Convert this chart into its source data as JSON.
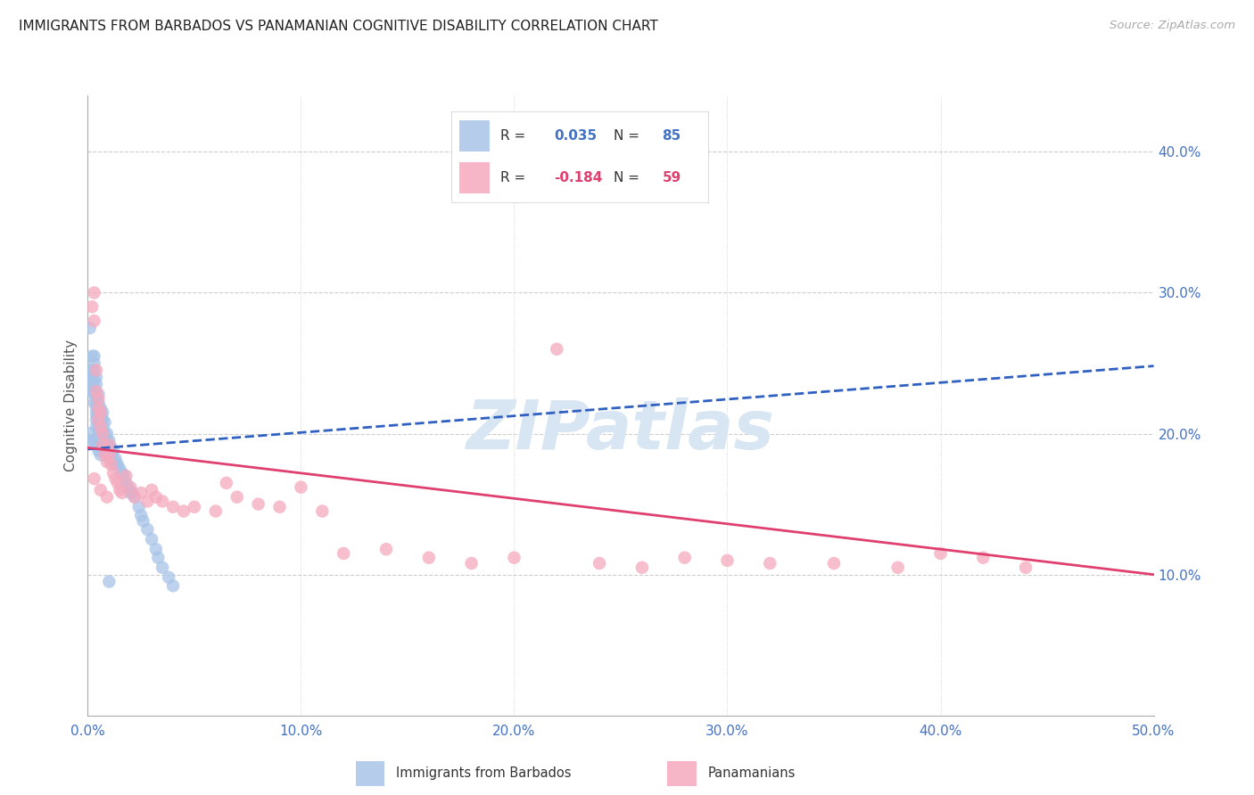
{
  "title": "IMMIGRANTS FROM BARBADOS VS PANAMANIAN COGNITIVE DISABILITY CORRELATION CHART",
  "source": "Source: ZipAtlas.com",
  "ylabel": "Cognitive Disability",
  "xlim": [
    0.0,
    0.5
  ],
  "ylim": [
    0.0,
    0.44
  ],
  "xticks": [
    0.0,
    0.1,
    0.2,
    0.3,
    0.4,
    0.5
  ],
  "yticks": [
    0.1,
    0.2,
    0.3,
    0.4
  ],
  "ytick_labels": [
    "10.0%",
    "20.0%",
    "30.0%",
    "40.0%"
  ],
  "xtick_labels": [
    "0.0%",
    "10.0%",
    "20.0%",
    "30.0%",
    "40.0%",
    "50.0%"
  ],
  "blue_dot_color": "#a8c4e8",
  "pink_dot_color": "#f5aabe",
  "blue_line_color": "#3060c0",
  "pink_line_color": "#e04070",
  "grid_color": "#cccccc",
  "background_color": "#ffffff",
  "title_color": "#222222",
  "axis_label_color": "#555555",
  "tick_label_color": "#4472c4",
  "watermark_color": "#d8e5f3",
  "blue_trend_x0": 0.0,
  "blue_trend_y0": 0.189,
  "blue_trend_x1": 0.5,
  "blue_trend_y1": 0.248,
  "pink_trend_x0": 0.0,
  "pink_trend_y0": 0.19,
  "pink_trend_x1": 0.5,
  "pink_trend_y1": 0.1,
  "blue_scatter_x": [
    0.001,
    0.001,
    0.002,
    0.002,
    0.002,
    0.002,
    0.002,
    0.003,
    0.003,
    0.003,
    0.003,
    0.003,
    0.003,
    0.003,
    0.004,
    0.004,
    0.004,
    0.004,
    0.004,
    0.004,
    0.004,
    0.004,
    0.005,
    0.005,
    0.005,
    0.005,
    0.005,
    0.005,
    0.005,
    0.006,
    0.006,
    0.006,
    0.006,
    0.006,
    0.006,
    0.007,
    0.007,
    0.007,
    0.007,
    0.007,
    0.007,
    0.008,
    0.008,
    0.008,
    0.008,
    0.009,
    0.009,
    0.009,
    0.009,
    0.01,
    0.01,
    0.01,
    0.01,
    0.011,
    0.011,
    0.012,
    0.012,
    0.013,
    0.013,
    0.014,
    0.015,
    0.016,
    0.017,
    0.018,
    0.019,
    0.02,
    0.021,
    0.022,
    0.024,
    0.025,
    0.026,
    0.028,
    0.03,
    0.032,
    0.033,
    0.035,
    0.038,
    0.04,
    0.001,
    0.002,
    0.003,
    0.004,
    0.005,
    0.006,
    0.007,
    0.009,
    0.01
  ],
  "blue_scatter_y": [
    0.275,
    0.24,
    0.255,
    0.245,
    0.24,
    0.235,
    0.23,
    0.255,
    0.25,
    0.245,
    0.238,
    0.232,
    0.228,
    0.222,
    0.24,
    0.235,
    0.228,
    0.222,
    0.218,
    0.214,
    0.21,
    0.205,
    0.228,
    0.222,
    0.218,
    0.215,
    0.21,
    0.205,
    0.2,
    0.218,
    0.215,
    0.21,
    0.205,
    0.2,
    0.195,
    0.215,
    0.21,
    0.205,
    0.2,
    0.195,
    0.19,
    0.208,
    0.2,
    0.195,
    0.188,
    0.2,
    0.195,
    0.19,
    0.185,
    0.195,
    0.192,
    0.188,
    0.182,
    0.19,
    0.185,
    0.188,
    0.182,
    0.182,
    0.178,
    0.178,
    0.175,
    0.172,
    0.17,
    0.165,
    0.162,
    0.158,
    0.158,
    0.155,
    0.148,
    0.142,
    0.138,
    0.132,
    0.125,
    0.118,
    0.112,
    0.105,
    0.098,
    0.092,
    0.2,
    0.195,
    0.195,
    0.192,
    0.188,
    0.185,
    0.2,
    0.185,
    0.095
  ],
  "pink_scatter_x": [
    0.002,
    0.003,
    0.003,
    0.004,
    0.004,
    0.005,
    0.005,
    0.005,
    0.006,
    0.006,
    0.007,
    0.007,
    0.008,
    0.009,
    0.01,
    0.01,
    0.011,
    0.012,
    0.013,
    0.014,
    0.015,
    0.016,
    0.018,
    0.02,
    0.022,
    0.025,
    0.028,
    0.03,
    0.032,
    0.035,
    0.04,
    0.045,
    0.05,
    0.06,
    0.065,
    0.07,
    0.08,
    0.09,
    0.1,
    0.11,
    0.12,
    0.14,
    0.16,
    0.18,
    0.2,
    0.22,
    0.24,
    0.26,
    0.28,
    0.3,
    0.32,
    0.35,
    0.38,
    0.4,
    0.42,
    0.44,
    0.003,
    0.006,
    0.009
  ],
  "pink_scatter_y": [
    0.29,
    0.3,
    0.28,
    0.245,
    0.23,
    0.225,
    0.218,
    0.21,
    0.215,
    0.205,
    0.2,
    0.192,
    0.185,
    0.18,
    0.192,
    0.185,
    0.178,
    0.172,
    0.168,
    0.165,
    0.16,
    0.158,
    0.17,
    0.162,
    0.155,
    0.158,
    0.152,
    0.16,
    0.155,
    0.152,
    0.148,
    0.145,
    0.148,
    0.145,
    0.165,
    0.155,
    0.15,
    0.148,
    0.162,
    0.145,
    0.115,
    0.118,
    0.112,
    0.108,
    0.112,
    0.26,
    0.108,
    0.105,
    0.112,
    0.11,
    0.108,
    0.108,
    0.105,
    0.115,
    0.112,
    0.105,
    0.168,
    0.16,
    0.155
  ]
}
